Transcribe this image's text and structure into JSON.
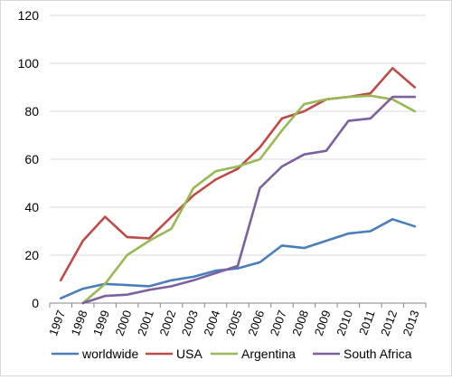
{
  "chart_data": {
    "type": "line",
    "title": "",
    "xlabel": "",
    "ylabel": "",
    "ylim": [
      0,
      120
    ],
    "y_ticks": [
      "0",
      "20",
      "40",
      "60",
      "80",
      "100",
      "120"
    ],
    "x_rotated_labels": true,
    "grid": "horizontal",
    "legend_placement": "bottom",
    "x": [
      "1997",
      "1998",
      "1999",
      "2000",
      "2001",
      "2002",
      "2003",
      "2004",
      "2005",
      "2006",
      "2007",
      "2008",
      "2009",
      "2010",
      "2011",
      "2012",
      "2013"
    ],
    "series": [
      {
        "name": "worldwide",
        "color": "#4a7ebb",
        "values": [
          2,
          6,
          8,
          7.5,
          7,
          9.5,
          11,
          13.5,
          14.5,
          17,
          24,
          23,
          26,
          29,
          30,
          35,
          32
        ]
      },
      {
        "name": "USA",
        "color": "#be4b48",
        "values": [
          9.5,
          26,
          36,
          27.5,
          27,
          36,
          45,
          51.5,
          56,
          65,
          77,
          80,
          85,
          86,
          87.5,
          98,
          90
        ]
      },
      {
        "name": "Argentina",
        "color": "#98b954",
        "values": [
          null,
          0,
          8,
          20,
          26,
          31,
          48,
          55,
          57,
          60,
          72,
          83,
          85,
          86,
          86.5,
          85,
          80
        ]
      },
      {
        "name": "South Africa",
        "color": "#7d60a0",
        "values": [
          null,
          0,
          3,
          3.5,
          5.5,
          7,
          9.5,
          12.5,
          15.5,
          48,
          57,
          62,
          63.5,
          76,
          77,
          86,
          86
        ]
      }
    ]
  }
}
